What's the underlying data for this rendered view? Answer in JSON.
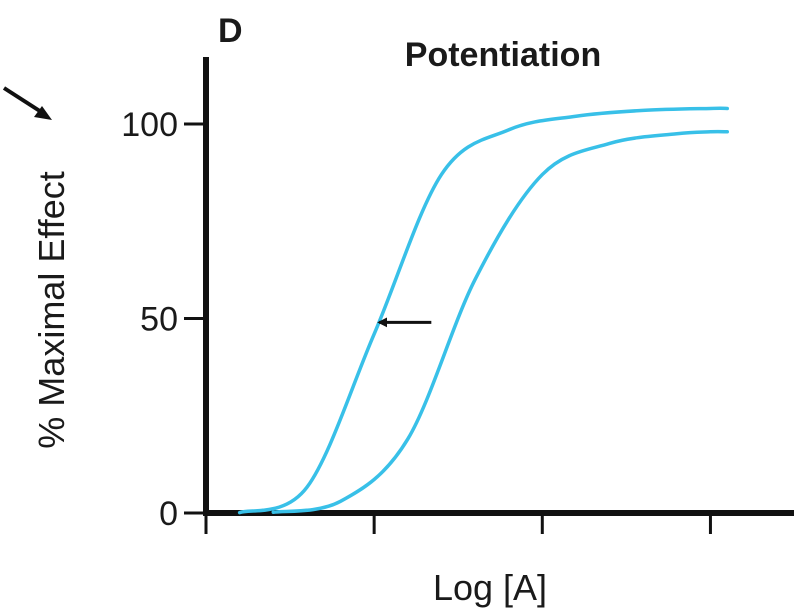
{
  "chart_data": {
    "type": "line",
    "panel_letter": "D",
    "title": "Potentiation",
    "xlabel": "Log [A]",
    "ylabel": "% Maximal Effect",
    "yticks": [
      0,
      50,
      100
    ],
    "ylim": [
      0,
      115
    ],
    "xlim": [
      0,
      3.1
    ],
    "xticks": [
      0,
      1,
      2,
      3
    ],
    "xtick_labels_shown": false,
    "grid": false,
    "legend": "none",
    "series": [
      {
        "color": "#38c0e8",
        "x": [
          0.2,
          0.6,
          1.0,
          1.4,
          1.8,
          2.2,
          2.6,
          3.0,
          3.1
        ],
        "y": [
          0.1,
          6.6,
          46,
          87,
          98.5,
          102,
          103.5,
          104,
          104
        ]
      },
      {
        "color": "#38c0e8",
        "x": [
          0.4,
          0.8,
          1.2,
          1.6,
          2.0,
          2.4,
          2.8,
          3.0,
          3.1
        ],
        "y": [
          0.2,
          3,
          19,
          60,
          87,
          95,
          97.5,
          98,
          98
        ]
      }
    ],
    "annotations": [
      {
        "type": "arrow",
        "direction": "left",
        "from_x": 1.34,
        "to_x": 1.03,
        "y": 49
      }
    ]
  }
}
